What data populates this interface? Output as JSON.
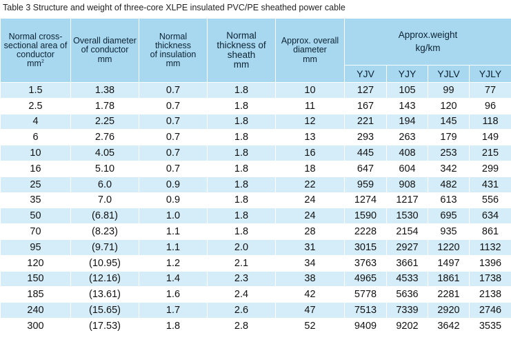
{
  "caption": "Table 3 Structure and weight of three-core XLPE insulated  PVC/PE sheathed power cable",
  "headers": {
    "area_line1": "Normal cross-",
    "area_line2": "sectional area of",
    "area_line3": "conductor",
    "area_unit": "mm",
    "area_sup": "2",
    "diam_line1": "Overall diameter",
    "diam_line2": "of conductor",
    "diam_unit": "mm",
    "ins_line1": "Normal thickness",
    "ins_line2": "of insulation",
    "ins_unit": "mm",
    "sheath_line1": "Normal",
    "sheath_line2": "thickness of",
    "sheath_line3": "sheath",
    "sheath_unit": "mm",
    "overall_line1": "Approx. overall",
    "overall_line2": "diameter",
    "overall_unit": "mm",
    "weight_line1": "Approx.weight",
    "weight_unit": "kg/km",
    "types": [
      "YJV",
      "YJY",
      "YJLV",
      "YJLY"
    ]
  },
  "rows": [
    [
      "1.5",
      "1.38",
      "0.7",
      "1.8",
      "10",
      "127",
      "105",
      "99",
      "77"
    ],
    [
      "2.5",
      "1.78",
      "0.7",
      "1.8",
      "11",
      "167",
      "143",
      "120",
      "96"
    ],
    [
      "4",
      "2.25",
      "0.7",
      "1.8",
      "12",
      "221",
      "194",
      "145",
      "118"
    ],
    [
      "6",
      "2.76",
      "0.7",
      "1.8",
      "13",
      "293",
      "263",
      "179",
      "149"
    ],
    [
      "10",
      "4.05",
      "0.7",
      "1.8",
      "16",
      "445",
      "408",
      "253",
      "215"
    ],
    [
      "16",
      "5.10",
      "0.7",
      "1.8",
      "18",
      "647",
      "604",
      "342",
      "299"
    ],
    [
      "25",
      "6.0",
      "0.9",
      "1.8",
      "22",
      "959",
      "908",
      "482",
      "431"
    ],
    [
      "35",
      "7.0",
      "0.9",
      "1.8",
      "24",
      "1274",
      "1217",
      "613",
      "556"
    ],
    [
      "50",
      "(6.81)",
      "1.0",
      "1.8",
      "24",
      "1590",
      "1530",
      "695",
      "634"
    ],
    [
      "70",
      "(8.23)",
      "1.1",
      "1.8",
      "28",
      "2228",
      "2154",
      "935",
      "861"
    ],
    [
      "95",
      "(9.71)",
      "1.1",
      "2.0",
      "31",
      "3015",
      "2927",
      "1220",
      "1132"
    ],
    [
      "120",
      "(10.95)",
      "1.2",
      "2.1",
      "34",
      "3763",
      "3661",
      "1497",
      "1396"
    ],
    [
      "150",
      "(12.16)",
      "1.4",
      "2.3",
      "38",
      "4965",
      "4533",
      "1861",
      "1738"
    ],
    [
      "185",
      "(13.61)",
      "1.6",
      "2.4",
      "42",
      "5778",
      "5636",
      "2281",
      "2138"
    ],
    [
      "240",
      "(15.65)",
      "1.7",
      "2.6",
      "47",
      "7513",
      "7339",
      "2920",
      "2746"
    ],
    [
      "300",
      "(17.53)",
      "1.8",
      "2.8",
      "52",
      "9409",
      "9202",
      "3642",
      "3535"
    ]
  ]
}
